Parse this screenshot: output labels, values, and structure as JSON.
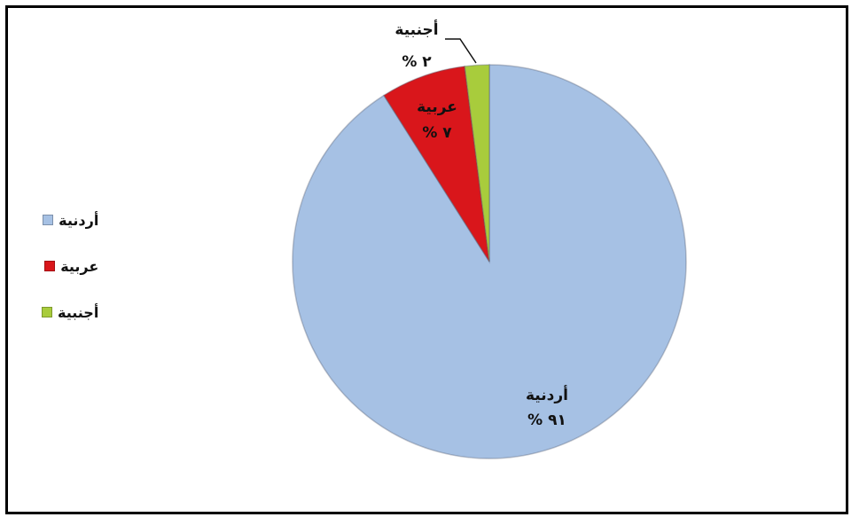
{
  "chart_data": {
    "type": "pie",
    "slices": [
      {
        "label": "أردنية",
        "value": 91,
        "value_label": "% ٩١",
        "color": "#a6c1e4"
      },
      {
        "label": "عربية",
        "value": 7,
        "value_label": "% ٧",
        "color": "#d9161b"
      },
      {
        "label": "أجنبية",
        "value": 2,
        "value_label": "% ٢",
        "color": "#a8cc3c"
      }
    ],
    "legend_position": "left",
    "border_color": "#000000"
  }
}
